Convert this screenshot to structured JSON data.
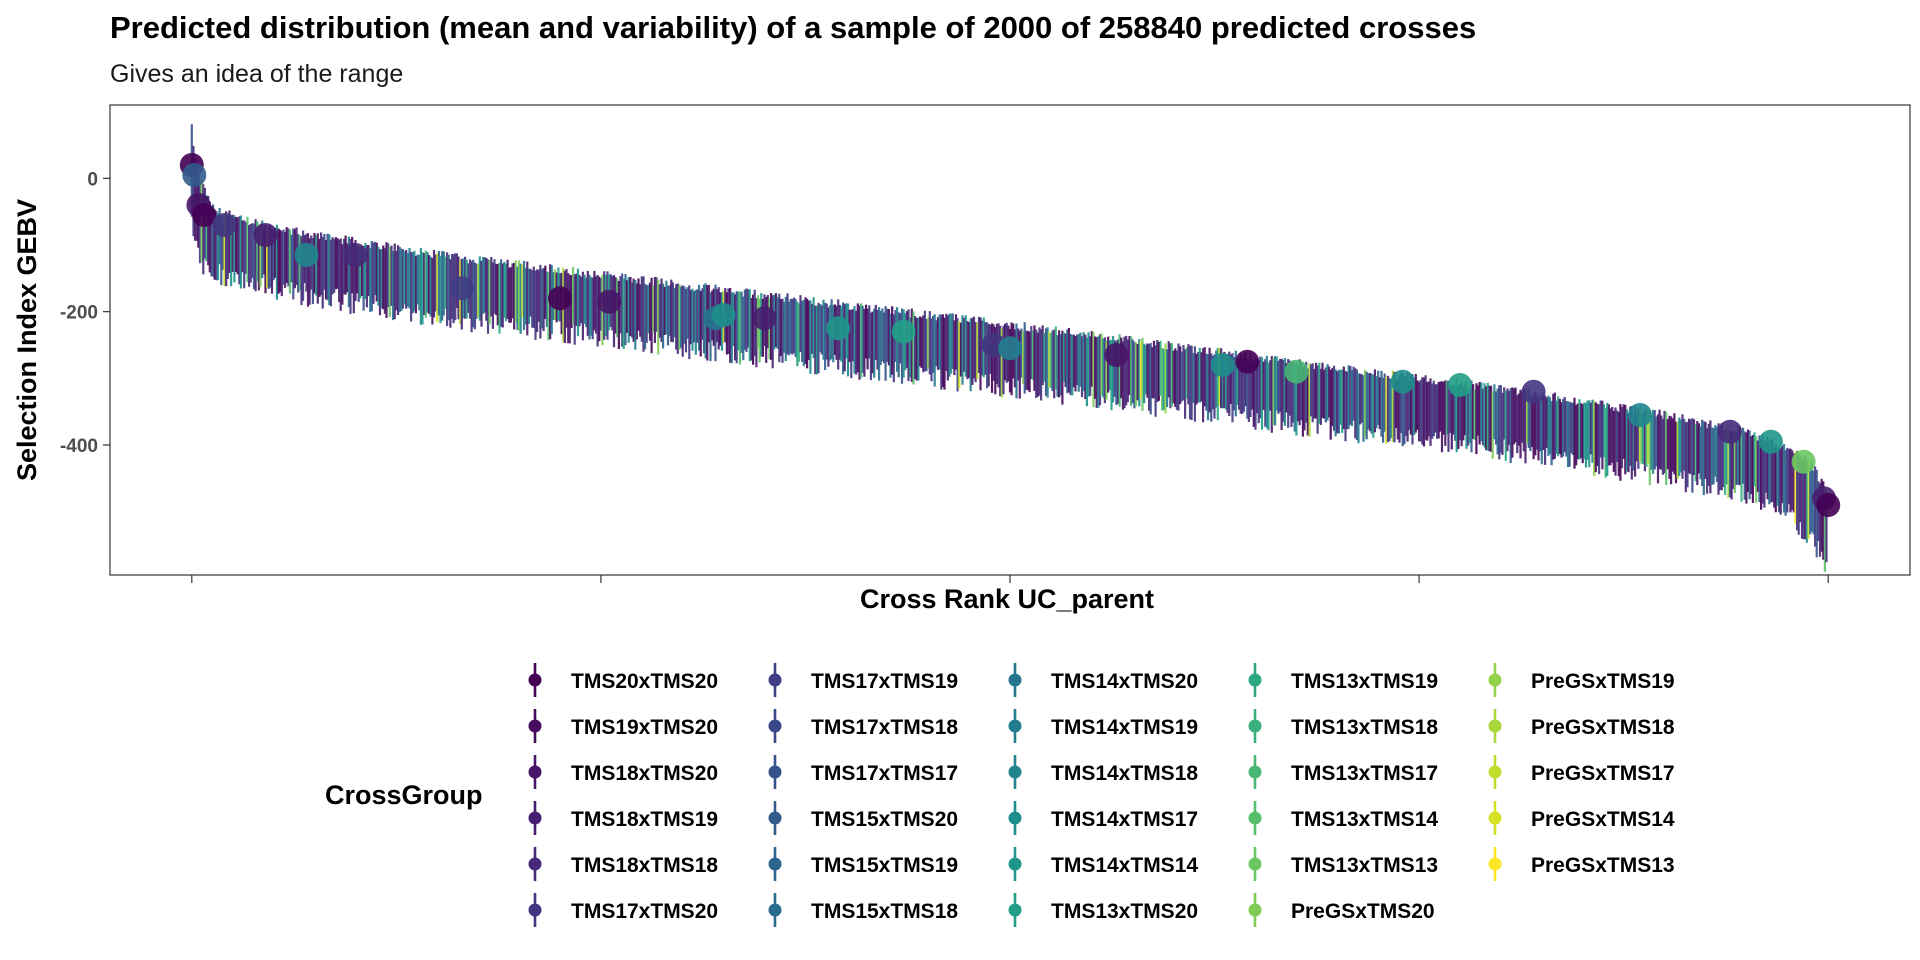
{
  "chart_data": {
    "type": "scatter",
    "title": "Predicted distribution (mean and variability) of a sample of 2000 of 258840 predicted crosses",
    "subtitle": "Gives an idea of the range",
    "xlabel": "Cross Rank UC_parent",
    "ylabel": "Selection Index GEBV",
    "ylim": [
      -595,
      110
    ],
    "yticks": [
      0,
      -200,
      -400
    ],
    "ytick_labels": [
      "0",
      "-200",
      "-400"
    ],
    "xlim": [
      -100,
      2100
    ],
    "xticks": [
      0,
      500,
      1000,
      1500,
      2000
    ],
    "grid": false,
    "n_crosses": 2000,
    "trend": {
      "rank": [
        0,
        2,
        5,
        10,
        20,
        40,
        80,
        150,
        300,
        500,
        800,
        1100,
        1400,
        1600,
        1800,
        1900,
        1950,
        1980,
        2000
      ],
      "mean": [
        20,
        -5,
        -25,
        -45,
        -58,
        -68,
        -82,
        -100,
        -130,
        -160,
        -205,
        -250,
        -300,
        -330,
        -370,
        -395,
        -420,
        -445,
        -490
      ]
    },
    "mean_points": [
      {
        "rank": 0,
        "mean": 20,
        "group": "TMS20xTMS20"
      },
      {
        "rank": 3,
        "mean": 5,
        "group": "TMS15xTMS20"
      },
      {
        "rank": 8,
        "mean": -40,
        "group": "TMS18xTMS20"
      },
      {
        "rank": 15,
        "mean": -55,
        "group": "TMS20xTMS20"
      },
      {
        "rank": 40,
        "mean": -70,
        "group": "TMS17xTMS20"
      },
      {
        "rank": 90,
        "mean": -85,
        "group": "TMS18xTMS19"
      },
      {
        "rank": 140,
        "mean": -115,
        "group": "TMS14xTMS18"
      },
      {
        "rank": 200,
        "mean": -115,
        "group": "TMS18xTMS18"
      },
      {
        "rank": 330,
        "mean": -165,
        "group": "TMS17xTMS19"
      },
      {
        "rank": 450,
        "mean": -180,
        "group": "TMS20xTMS20"
      },
      {
        "rank": 510,
        "mean": -185,
        "group": "TMS18xTMS20"
      },
      {
        "rank": 640,
        "mean": -210,
        "group": "TMS14xTMS20"
      },
      {
        "rank": 650,
        "mean": -205,
        "group": "TMS14xTMS17"
      },
      {
        "rank": 700,
        "mean": -210,
        "group": "TMS18xTMS19"
      },
      {
        "rank": 790,
        "mean": -225,
        "group": "TMS14xTMS14"
      },
      {
        "rank": 870,
        "mean": -230,
        "group": "TMS13xTMS20"
      },
      {
        "rank": 980,
        "mean": -250,
        "group": "TMS17xTMS20"
      },
      {
        "rank": 1000,
        "mean": -255,
        "group": "TMS14xTMS19"
      },
      {
        "rank": 1130,
        "mean": -265,
        "group": "TMS18xTMS20"
      },
      {
        "rank": 1260,
        "mean": -280,
        "group": "TMS14xTMS17"
      },
      {
        "rank": 1290,
        "mean": -275,
        "group": "TMS20xTMS20"
      },
      {
        "rank": 1350,
        "mean": -290,
        "group": "TMS13xTMS17"
      },
      {
        "rank": 1480,
        "mean": -305,
        "group": "TMS14xTMS17"
      },
      {
        "rank": 1550,
        "mean": -310,
        "group": "TMS13xTMS20"
      },
      {
        "rank": 1640,
        "mean": -320,
        "group": "TMS17xTMS20"
      },
      {
        "rank": 1770,
        "mean": -355,
        "group": "TMS14xTMS18"
      },
      {
        "rank": 1880,
        "mean": -380,
        "group": "TMS18xTMS18"
      },
      {
        "rank": 1930,
        "mean": -395,
        "group": "TMS14xTMS14"
      },
      {
        "rank": 1970,
        "mean": -425,
        "group": "TMS13xTMS13"
      },
      {
        "rank": 1995,
        "mean": -480,
        "group": "TMS18xTMS19"
      },
      {
        "rank": 2000,
        "mean": -490,
        "group": "TMS20xTMS20"
      }
    ],
    "legend": {
      "title": "CrossGroup",
      "placement": "bottom",
      "columns": [
        [
          {
            "label": "TMS20xTMS20",
            "color": "#440154"
          },
          {
            "label": "TMS19xTMS20",
            "color": "#460b5e"
          },
          {
            "label": "TMS18xTMS20",
            "color": "#471567"
          },
          {
            "label": "TMS18xTMS19",
            "color": "#471f70"
          },
          {
            "label": "TMS18xTMS18",
            "color": "#462a79"
          },
          {
            "label": "TMS17xTMS20",
            "color": "#433580"
          }
        ],
        [
          {
            "label": "TMS17xTMS19",
            "color": "#3f3d84"
          },
          {
            "label": "TMS17xTMS18",
            "color": "#3b4888"
          },
          {
            "label": "TMS17xTMS17",
            "color": "#36528b"
          },
          {
            "label": "TMS15xTMS20",
            "color": "#325b8c"
          },
          {
            "label": "TMS15xTMS19",
            "color": "#2d648d"
          },
          {
            "label": "TMS15xTMS18",
            "color": "#296c8e"
          }
        ],
        [
          {
            "label": "TMS14xTMS20",
            "color": "#26758e"
          },
          {
            "label": "TMS14xTMS19",
            "color": "#237d8e"
          },
          {
            "label": "TMS14xTMS18",
            "color": "#20858d"
          },
          {
            "label": "TMS14xTMS17",
            "color": "#1e8e8c"
          },
          {
            "label": "TMS14xTMS14",
            "color": "#1f968a"
          },
          {
            "label": "TMS13xTMS20",
            "color": "#229f87"
          }
        ],
        [
          {
            "label": "TMS13xTMS19",
            "color": "#2ba782"
          },
          {
            "label": "TMS13xTMS18",
            "color": "#38af7c"
          },
          {
            "label": "TMS13xTMS17",
            "color": "#47b675"
          },
          {
            "label": "TMS13xTMS14",
            "color": "#57be6c"
          },
          {
            "label": "TMS13xTMS13",
            "color": "#6ac562"
          },
          {
            "label": "PreGSxTMS20",
            "color": "#7ecc56"
          }
        ],
        [
          {
            "label": "PreGSxTMS19",
            "color": "#93d34a"
          },
          {
            "label": "PreGSxTMS18",
            "color": "#a9d83c"
          },
          {
            "label": "PreGSxTMS17",
            "color": "#c0dc2f"
          },
          {
            "label": "PreGSxTMS14",
            "color": "#d7e124"
          },
          {
            "label": "PreGSxTMS13",
            "color": "#fde725"
          }
        ]
      ]
    }
  }
}
